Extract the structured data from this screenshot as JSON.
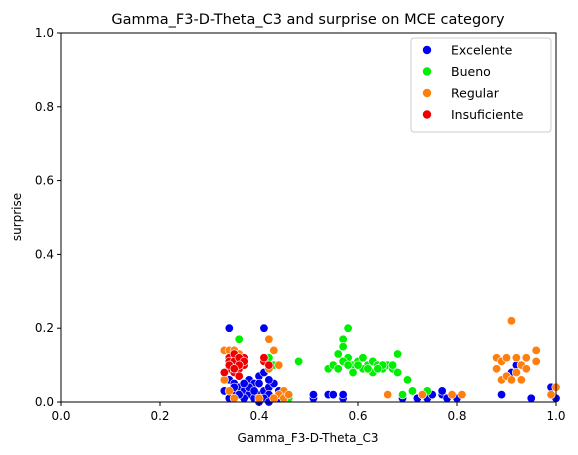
{
  "chart_data": {
    "type": "scatter",
    "title": "Gamma_F3-D-Theta_C3 and surprise on MCE category",
    "xlabel": "Gamma_F3-D-Theta_C3",
    "ylabel": "surprise",
    "xlim": [
      0,
      1
    ],
    "ylim": [
      0,
      1
    ],
    "xticks": [
      "0.0",
      "0.2",
      "0.4",
      "0.6",
      "0.8",
      "1.0"
    ],
    "yticks": [
      "0.0",
      "0.2",
      "0.4",
      "0.6",
      "0.8",
      "1.0"
    ],
    "grid": false,
    "legend_position": "top-right",
    "series": [
      {
        "name": "Excelente",
        "color": "#0000ee",
        "points": [
          [
            0.34,
            0.2
          ],
          [
            0.41,
            0.2
          ],
          [
            0.34,
            0.06
          ],
          [
            0.35,
            0.05
          ],
          [
            0.36,
            0.04
          ],
          [
            0.37,
            0.03
          ],
          [
            0.38,
            0.02
          ],
          [
            0.39,
            0.01
          ],
          [
            0.4,
            0.02
          ],
          [
            0.41,
            0.03
          ],
          [
            0.42,
            0.04
          ],
          [
            0.43,
            0.05
          ],
          [
            0.36,
            0.07
          ],
          [
            0.38,
            0.06
          ],
          [
            0.4,
            0.07
          ],
          [
            0.41,
            0.08
          ],
          [
            0.42,
            0.06
          ],
          [
            0.39,
            0.05
          ],
          [
            0.37,
            0.01
          ],
          [
            0.35,
            0.02
          ],
          [
            0.33,
            0.03
          ],
          [
            0.34,
            0.01
          ],
          [
            0.36,
            0.02
          ],
          [
            0.38,
            0.04
          ],
          [
            0.4,
            0.05
          ],
          [
            0.42,
            0.02
          ],
          [
            0.43,
            0.01
          ],
          [
            0.44,
            0.03
          ],
          [
            0.41,
            0.01
          ],
          [
            0.39,
            0.03
          ],
          [
            0.37,
            0.05
          ],
          [
            0.35,
            0.04
          ],
          [
            0.44,
            0.01
          ],
          [
            0.4,
            0.0
          ],
          [
            0.42,
            0.0
          ],
          [
            0.51,
            0.01
          ],
          [
            0.51,
            0.02
          ],
          [
            0.54,
            0.02
          ],
          [
            0.55,
            0.02
          ],
          [
            0.57,
            0.01
          ],
          [
            0.57,
            0.02
          ],
          [
            0.69,
            0.01
          ],
          [
            0.69,
            0.02
          ],
          [
            0.72,
            0.01
          ],
          [
            0.74,
            0.01
          ],
          [
            0.75,
            0.02
          ],
          [
            0.77,
            0.02
          ],
          [
            0.77,
            0.03
          ],
          [
            0.78,
            0.01
          ],
          [
            0.8,
            0.01
          ],
          [
            0.89,
            0.02
          ],
          [
            0.91,
            0.08
          ],
          [
            0.92,
            0.1
          ],
          [
            0.93,
            0.1
          ],
          [
            0.94,
            0.09
          ],
          [
            0.95,
            0.01
          ],
          [
            0.99,
            0.04
          ],
          [
            1.0,
            0.01
          ]
        ]
      },
      {
        "name": "Bueno",
        "color": "#00ee00",
        "points": [
          [
            0.36,
            0.17
          ],
          [
            0.42,
            0.12
          ],
          [
            0.43,
            0.1
          ],
          [
            0.45,
            0.02
          ],
          [
            0.46,
            0.01
          ],
          [
            0.48,
            0.11
          ],
          [
            0.54,
            0.09
          ],
          [
            0.55,
            0.1
          ],
          [
            0.56,
            0.13
          ],
          [
            0.57,
            0.17
          ],
          [
            0.57,
            0.15
          ],
          [
            0.58,
            0.2
          ],
          [
            0.58,
            0.12
          ],
          [
            0.59,
            0.1
          ],
          [
            0.6,
            0.11
          ],
          [
            0.61,
            0.12
          ],
          [
            0.62,
            0.1
          ],
          [
            0.63,
            0.11
          ],
          [
            0.64,
            0.1
          ],
          [
            0.65,
            0.09
          ],
          [
            0.66,
            0.1
          ],
          [
            0.67,
            0.09
          ],
          [
            0.68,
            0.13
          ],
          [
            0.68,
            0.08
          ],
          [
            0.69,
            0.02
          ],
          [
            0.7,
            0.06
          ],
          [
            0.71,
            0.03
          ],
          [
            0.73,
            0.02
          ],
          [
            0.74,
            0.03
          ],
          [
            0.56,
            0.09
          ],
          [
            0.59,
            0.08
          ],
          [
            0.61,
            0.09
          ],
          [
            0.63,
            0.08
          ],
          [
            0.65,
            0.1
          ],
          [
            0.67,
            0.1
          ],
          [
            0.6,
            0.1
          ],
          [
            0.62,
            0.09
          ],
          [
            0.57,
            0.11
          ],
          [
            0.58,
            0.1
          ],
          [
            0.64,
            0.09
          ]
        ]
      },
      {
        "name": "Regular",
        "color": "#ff7f0e",
        "points": [
          [
            0.33,
            0.14
          ],
          [
            0.34,
            0.14
          ],
          [
            0.35,
            0.14
          ],
          [
            0.36,
            0.1
          ],
          [
            0.33,
            0.06
          ],
          [
            0.34,
            0.03
          ],
          [
            0.35,
            0.01
          ],
          [
            0.36,
            0.13
          ],
          [
            0.41,
            0.12
          ],
          [
            0.42,
            0.17
          ],
          [
            0.43,
            0.14
          ],
          [
            0.44,
            0.1
          ],
          [
            0.45,
            0.03
          ],
          [
            0.44,
            0.02
          ],
          [
            0.43,
            0.01
          ],
          [
            0.42,
            0.09
          ],
          [
            0.41,
            0.11
          ],
          [
            0.4,
            0.01
          ],
          [
            0.45,
            0.01
          ],
          [
            0.46,
            0.02
          ],
          [
            0.66,
            0.02
          ],
          [
            0.73,
            0.02
          ],
          [
            0.79,
            0.02
          ],
          [
            0.81,
            0.02
          ],
          [
            0.88,
            0.12
          ],
          [
            0.88,
            0.09
          ],
          [
            0.89,
            0.06
          ],
          [
            0.89,
            0.11
          ],
          [
            0.9,
            0.12
          ],
          [
            0.9,
            0.07
          ],
          [
            0.91,
            0.22
          ],
          [
            0.91,
            0.06
          ],
          [
            0.92,
            0.08
          ],
          [
            0.92,
            0.12
          ],
          [
            0.93,
            0.1
          ],
          [
            0.93,
            0.06
          ],
          [
            0.94,
            0.09
          ],
          [
            0.94,
            0.12
          ],
          [
            0.96,
            0.14
          ],
          [
            0.96,
            0.11
          ],
          [
            0.99,
            0.02
          ],
          [
            1.0,
            0.04
          ]
        ]
      },
      {
        "name": "Insuficiente",
        "color": "#ee0000",
        "points": [
          [
            0.34,
            0.09
          ],
          [
            0.34,
            0.12
          ],
          [
            0.35,
            0.1
          ],
          [
            0.35,
            0.13
          ],
          [
            0.35,
            0.08
          ],
          [
            0.36,
            0.11
          ],
          [
            0.36,
            0.09
          ],
          [
            0.37,
            0.12
          ],
          [
            0.37,
            0.1
          ],
          [
            0.34,
            0.11
          ],
          [
            0.35,
            0.11
          ],
          [
            0.36,
            0.12
          ],
          [
            0.34,
            0.1
          ],
          [
            0.37,
            0.11
          ],
          [
            0.36,
            0.1
          ],
          [
            0.35,
            0.09
          ],
          [
            0.33,
            0.08
          ],
          [
            0.41,
            0.11
          ],
          [
            0.42,
            0.1
          ],
          [
            0.41,
            0.12
          ],
          [
            0.36,
            0.07
          ]
        ]
      }
    ]
  }
}
